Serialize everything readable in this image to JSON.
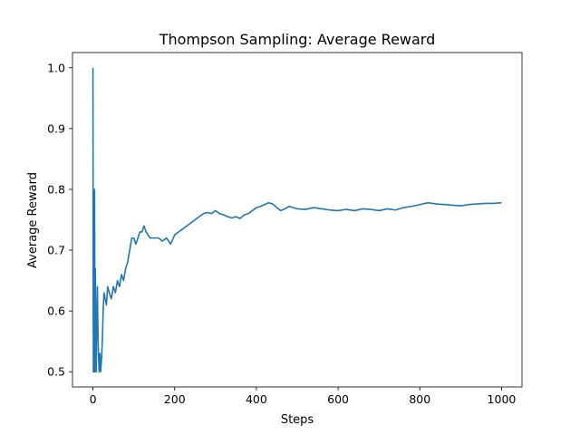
{
  "chart_data": {
    "type": "line",
    "title": "Thompson Sampling: Average Reward",
    "xlabel": "Steps",
    "ylabel": "Average Reward",
    "xlim": [
      -50,
      1050
    ],
    "ylim": [
      0.475,
      1.025
    ],
    "xticks": [
      0,
      200,
      400,
      600,
      800,
      1000
    ],
    "xtick_labels": [
      "0",
      "200",
      "400",
      "600",
      "800",
      "1000"
    ],
    "yticks": [
      0.5,
      0.6,
      0.7,
      0.8,
      0.9,
      1.0
    ],
    "ytick_labels": [
      "0.5",
      "0.6",
      "0.7",
      "0.8",
      "0.9",
      "1.0"
    ],
    "grid": false,
    "legend": "none",
    "series": [
      {
        "color": "#1f77b4",
        "x": [
          0,
          1,
          2,
          3,
          4,
          5,
          6,
          7,
          8,
          9,
          10,
          11,
          12,
          13,
          15,
          17,
          19,
          21,
          23,
          25,
          27,
          30,
          33,
          36,
          40,
          45,
          50,
          55,
          60,
          65,
          70,
          75,
          80,
          85,
          90,
          95,
          100,
          105,
          110,
          115,
          120,
          125,
          130,
          140,
          150,
          160,
          170,
          180,
          190,
          200,
          210,
          220,
          230,
          240,
          250,
          260,
          270,
          280,
          290,
          300,
          310,
          320,
          330,
          340,
          350,
          360,
          370,
          380,
          390,
          400,
          410,
          420,
          430,
          440,
          450,
          460,
          470,
          480,
          490,
          500,
          520,
          540,
          560,
          580,
          600,
          620,
          640,
          660,
          680,
          700,
          720,
          740,
          760,
          780,
          800,
          820,
          840,
          860,
          880,
          900,
          920,
          940,
          960,
          980,
          1000
        ],
        "y": [
          1.0,
          0.5,
          0.67,
          0.5,
          0.8,
          0.5,
          0.67,
          0.57,
          0.5,
          0.56,
          0.6,
          0.64,
          0.58,
          0.54,
          0.5,
          0.53,
          0.5,
          0.52,
          0.55,
          0.6,
          0.63,
          0.62,
          0.61,
          0.64,
          0.63,
          0.62,
          0.64,
          0.63,
          0.65,
          0.64,
          0.66,
          0.65,
          0.67,
          0.68,
          0.7,
          0.72,
          0.72,
          0.71,
          0.72,
          0.73,
          0.73,
          0.74,
          0.73,
          0.72,
          0.72,
          0.72,
          0.715,
          0.72,
          0.71,
          0.725,
          0.73,
          0.735,
          0.74,
          0.745,
          0.75,
          0.755,
          0.76,
          0.762,
          0.76,
          0.765,
          0.76,
          0.758,
          0.755,
          0.753,
          0.755,
          0.752,
          0.758,
          0.76,
          0.765,
          0.77,
          0.772,
          0.775,
          0.778,
          0.776,
          0.77,
          0.765,
          0.768,
          0.772,
          0.77,
          0.768,
          0.767,
          0.77,
          0.768,
          0.766,
          0.765,
          0.767,
          0.765,
          0.768,
          0.767,
          0.765,
          0.768,
          0.766,
          0.77,
          0.772,
          0.775,
          0.778,
          0.776,
          0.775,
          0.774,
          0.773,
          0.775,
          0.776,
          0.777,
          0.777,
          0.778
        ]
      }
    ]
  }
}
